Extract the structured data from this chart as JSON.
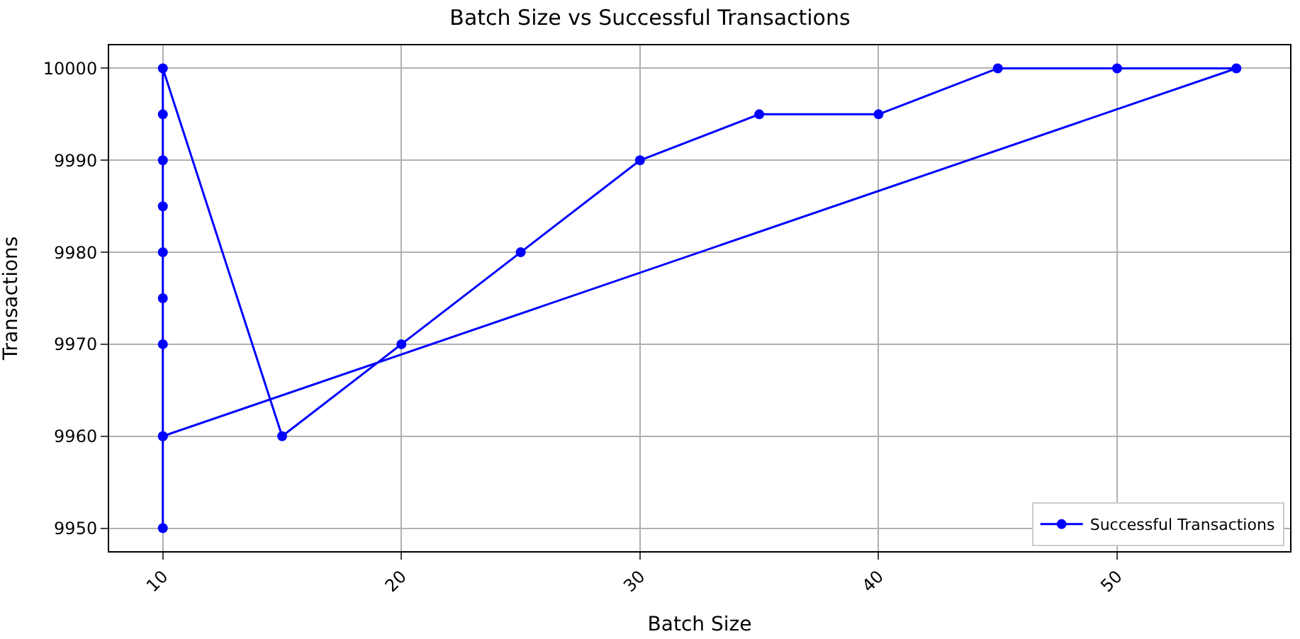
{
  "chart_data": {
    "type": "line",
    "title": "Batch Size vs Successful Transactions",
    "xlabel": "Batch Size",
    "ylabel": "Transactions",
    "series": [
      {
        "name": "Successful Transactions",
        "color": "#0000ff",
        "x": [
          10,
          10,
          10,
          10,
          10,
          10,
          10,
          10,
          10,
          15,
          20,
          25,
          30,
          35,
          40,
          45,
          50,
          55,
          10
        ],
        "values": [
          9950,
          9960,
          9970,
          9975,
          9980,
          9985,
          9990,
          9995,
          10000,
          9960,
          9970,
          9980,
          9990,
          9995,
          9995,
          10000,
          10000,
          10000,
          9960
        ]
      }
    ],
    "xlim": [
      7.75,
      57.25
    ],
    "xticks": [
      10,
      20,
      30,
      40,
      50
    ],
    "ylim": [
      9947.5,
      10002.5
    ],
    "yticks": [
      9950,
      9960,
      9970,
      9980,
      9990,
      10000
    ],
    "grid": true,
    "legend": "bottom right",
    "marker": "circle",
    "line_style": "solid"
  }
}
